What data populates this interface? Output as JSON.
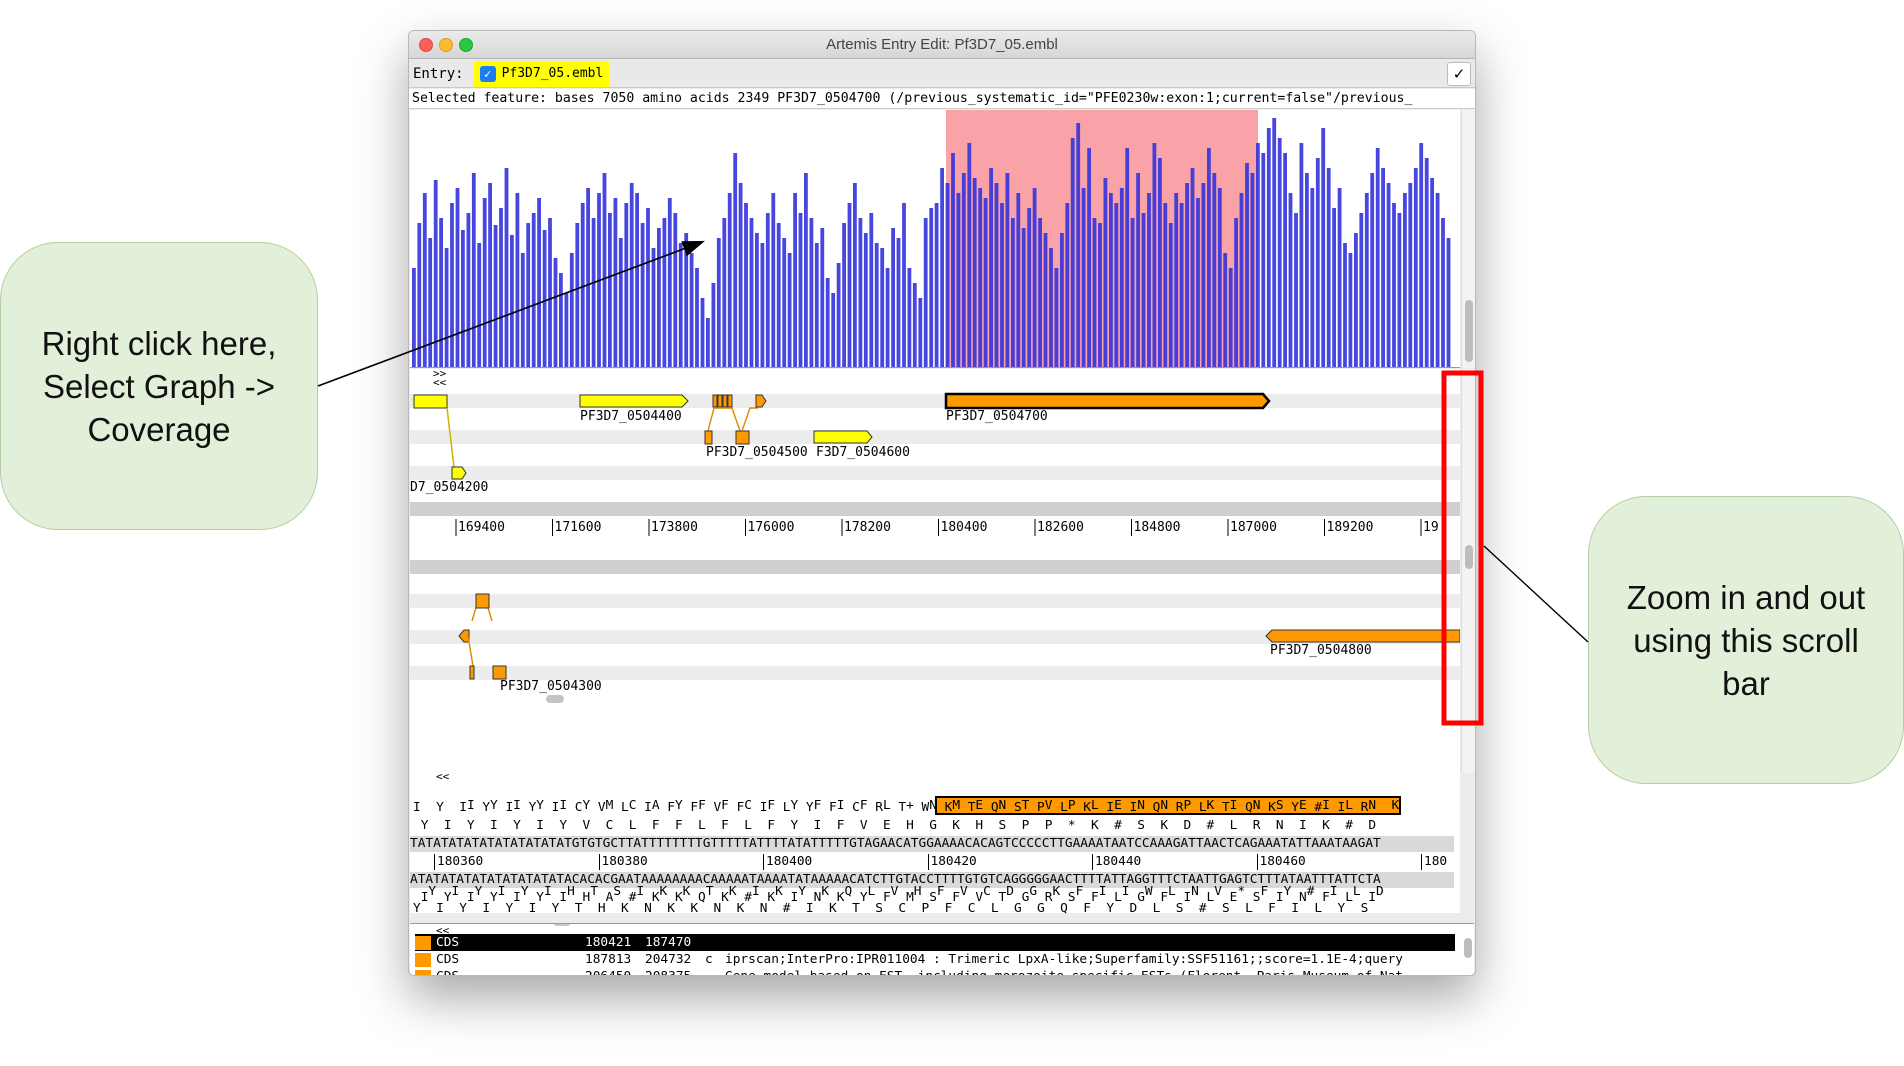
{
  "window": {
    "title": "Artemis Entry Edit: Pf3D7_05.embl"
  },
  "entry": {
    "label": "Entry:",
    "name": "Pf3D7_05.embl",
    "checked": true,
    "confirm_glyph": "✓"
  },
  "selected_feature": "Selected feature:  bases 7050  amino acids 2349  PF3D7_0504700  (/previous_systematic_id=\"PFE0230w:exon:1;current=false\"/previous_",
  "colors": {
    "coverage": "#3333dd",
    "selection": "#f9a3a8",
    "feature_yellow": "#ffff00",
    "feature_orange": "#ff9900"
  },
  "coverage": {
    "heights": [
      40,
      58,
      70,
      52,
      75,
      60,
      48,
      66,
      72,
      55,
      62,
      78,
      50,
      68,
      74,
      57,
      64,
      80,
      53,
      70,
      46,
      58,
      62,
      68,
      55,
      60,
      44,
      38,
      30,
      46,
      58,
      66,
      72,
      60,
      70,
      78,
      62,
      68,
      52,
      66,
      74,
      70,
      58,
      64,
      48,
      56,
      60,
      68,
      62,
      50,
      54,
      46,
      40,
      28,
      20,
      34,
      52,
      60,
      70,
      86,
      74,
      66,
      60,
      54,
      50,
      62,
      70,
      58,
      52,
      46,
      70,
      62,
      78,
      60,
      50,
      56,
      36,
      30,
      42,
      58,
      66,
      74,
      60,
      54,
      62,
      50,
      48,
      40,
      56,
      52,
      66,
      40,
      34,
      28,
      60,
      64,
      66,
      80,
      74,
      86,
      70,
      78,
      90,
      76,
      72,
      68,
      80,
      74,
      66,
      78,
      60,
      70,
      56,
      64,
      72,
      60,
      54,
      48,
      40,
      54,
      66,
      92,
      98,
      72,
      88,
      60,
      58,
      76,
      70,
      66,
      72,
      88,
      60,
      78,
      62,
      70,
      90,
      84,
      66,
      58,
      70,
      66,
      74,
      80,
      68,
      74,
      88,
      78,
      72,
      46,
      40,
      60,
      70,
      82,
      78,
      90,
      86,
      96,
      100,
      92,
      86,
      70,
      62,
      90,
      78,
      72,
      84,
      96,
      80,
      64,
      72,
      50,
      46,
      54,
      62,
      70,
      78,
      88,
      80,
      74,
      66,
      62,
      70,
      74,
      80,
      90,
      84,
      76,
      70,
      60,
      52
    ]
  },
  "features": {
    "forward_marker": ">>",
    "reverse_marker": "<<",
    "labels": {
      "f0504400": "PF3D7_0504400",
      "f0504500": "PF3D7_0504500",
      "f0504600": "F3D7_0504600",
      "f0504700": "PF3D7_0504700",
      "f0504200": "D7_0504200",
      "f0504300": "PF3D7_0504300",
      "f0504800": "PF3D7_0504800"
    },
    "ruler": [
      "169400",
      "171600",
      "173800",
      "176000",
      "178200",
      "180400",
      "182600",
      "184800",
      "187000",
      "189200",
      "19"
    ]
  },
  "sequence": {
    "reverse_marker": "<<",
    "fwd_frame1_prefix": " I  Y  I  Y  I  Y  M  C  A  Y  F  F  C  F  Y  F  I  F  L  +  N",
    "fwd_frame1_highlight": "  M  E  N  T  V  P  L  E  N  N  P  K  I  N  S  E  I  L  N  K",
    "fwd_frame2": "I  Y  I  Y  I  Y  I  C  V  L  I  F  F  V  F  I  L  Y  F  C  R  T  W  K  T  Q  S  P  L  K  I  I  Q  R  L  T  Q  K  Y  #  I  R",
    "fwd_frame3": " Y  I  Y  I  Y  I  Y  V  C  L  F  F  L  F  L  F  Y  I  F  V  E  H  G  K  H  S  P  P  *  K  #  S  K  D  #  L  R  N  I  K  #  D",
    "dna_forward": "TATATATATATATATATATATGTGTGCTTATTTTTTTTGTTTTTATTTTATATTTTTGTAGAACATGGAAAACACAGTCCCCCTTGAAAATAATCCAAAGATTAACTCAGAAATATTAAATAAGAT",
    "positions": [
      "180360",
      "180380",
      "180400",
      "180420",
      "180440",
      "180460",
      "180"
    ],
    "dna_reverse": "ATATATATATATATATATATACACACGAATAAAAAAAACAAAAATAAAATATAAAAACATCTTGTACCTTTTGTGTCAGGGGGAACTTTTATTAGGTTTCTAATTGAGTCTTTATAATTTATTCTA",
    "rev_frame1": " I  Y  I  Y  I  Y  I  H  A  #  K  K  Q  K  #  K  I  N  K  Y  F  M  S  F  V  T  G  R  S  F  L  G  F  I  L  E  S  I  N  F  L  I",
    "rev_frame2": "  Y  I  Y  I  Y  I  H  T  S  I  K  K  T  K  I  K  Y  K  Q  L  V  H  F  V  C  D  G  K  F  I  I  W  L  N  V  *  F  Y  #  I  L  D",
    "rev_frame3": "Y  I  Y  I  Y  I  Y  T  H  K  N  K  K  N  K  N  #  I  K  T  S  C  P  F  C  L  G  G  Q  F  Y  D  L  S  #  S  L  F  I  L  Y  S"
  },
  "feature_list": {
    "marker": "<<",
    "rows": [
      {
        "key": "CDS",
        "start": "180421",
        "end": "187470",
        "strand": "",
        "note": ""
      },
      {
        "key": "CDS",
        "start": "187813",
        "end": "204732",
        "strand": "c",
        "note": "iprscan;InterPro:IPR011004 : Trimeric LpxA-like;Superfamily:SSF51161;;score=1.1E-4;query"
      },
      {
        "key": "CDS",
        "start": "206450",
        "end": "208375",
        "strand": "",
        "note": "Gene model based on EST, including merozoite specific ESTs (Florent, Paris Museum of Nat"
      }
    ]
  },
  "annotations": {
    "left": [
      "Right click here,",
      "Select Graph ->",
      "Coverage"
    ],
    "right": [
      "Zoom in and out",
      "using this scroll",
      "bar"
    ]
  }
}
